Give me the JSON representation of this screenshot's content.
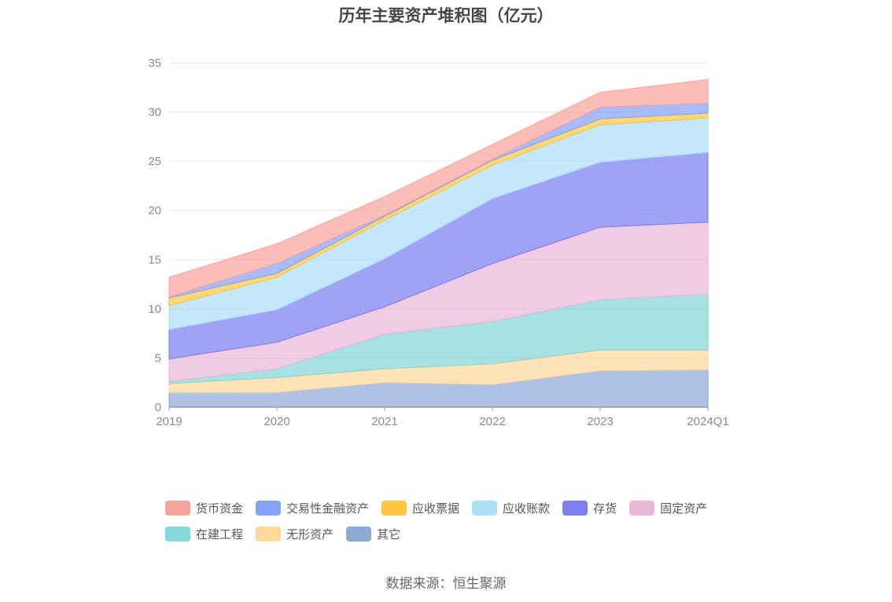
{
  "title": "历年主要资产堆积图（亿元）",
  "source": "数据来源：恒生聚源",
  "chart_data": {
    "type": "area",
    "stacked": true,
    "categories": [
      "2019",
      "2020",
      "2021",
      "2022",
      "2023",
      "2024Q1"
    ],
    "ylim": [
      0,
      35
    ],
    "yticks": [
      0,
      5,
      10,
      15,
      20,
      25,
      30,
      35
    ],
    "grid": true,
    "legend_position": "bottom",
    "series": [
      {
        "name": "其它",
        "color": "#8eaad9",
        "values": [
          1.5,
          1.5,
          2.5,
          2.3,
          3.7,
          3.8
        ]
      },
      {
        "name": "无形资产",
        "color": "#fdd89a",
        "values": [
          0.9,
          1.5,
          1.4,
          2.1,
          2.1,
          2.0
        ]
      },
      {
        "name": "在建工程",
        "color": "#85d6d6",
        "values": [
          0.2,
          0.9,
          3.5,
          4.3,
          5.1,
          5.7
        ]
      },
      {
        "name": "固定资产",
        "color": "#e9b8d8",
        "values": [
          2.3,
          2.7,
          2.8,
          5.9,
          7.4,
          7.3
        ]
      },
      {
        "name": "存货",
        "color": "#7c7ef2",
        "values": [
          3.0,
          3.3,
          4.9,
          6.6,
          6.6,
          7.1
        ]
      },
      {
        "name": "应收账款",
        "color": "#addff8",
        "values": [
          2.4,
          3.3,
          3.9,
          3.4,
          3.8,
          3.5
        ]
      },
      {
        "name": "应收票据",
        "color": "#fcc640",
        "values": [
          0.8,
          0.4,
          0.4,
          0.5,
          0.6,
          0.5
        ]
      },
      {
        "name": "交易性金融资产",
        "color": "#86a2f8",
        "values": [
          0.1,
          1.0,
          0.1,
          0.1,
          1.2,
          1.0
        ]
      },
      {
        "name": "货币资金",
        "color": "#f9a39d",
        "values": [
          2.0,
          2.0,
          1.9,
          1.5,
          1.5,
          2.4
        ]
      }
    ]
  },
  "legend": {
    "rows": [
      [
        "货币资金",
        "交易性金融资产",
        "应收票据",
        "应收账款",
        "存货",
        "固定资产"
      ],
      [
        "在建工程",
        "无形资产",
        "其它"
      ]
    ]
  }
}
